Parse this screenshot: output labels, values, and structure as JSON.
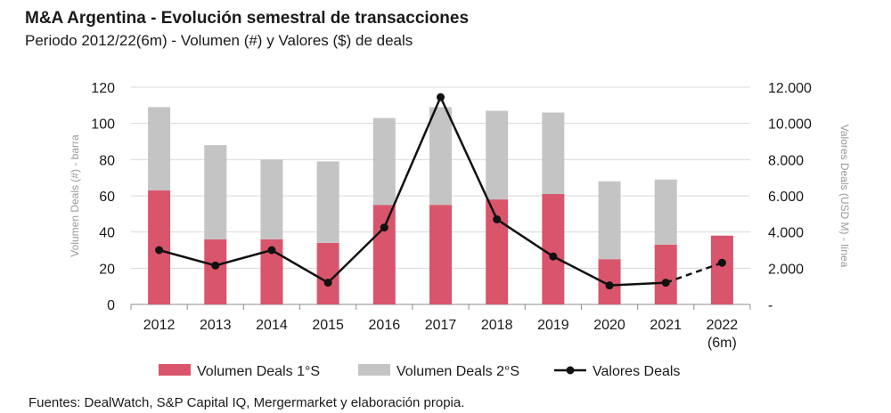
{
  "title": "M&A Argentina - Evolución semestral de transacciones",
  "subtitle": "Periodo 2012/22(6m) - Volumen  (#) y Valores ($) de deals",
  "source": "Fuentes: DealWatch, S&P Capital IQ, Mergermarket y elaboración propia.",
  "chart_data": {
    "type": "bar",
    "stacked": true,
    "categories": [
      "2012",
      "2013",
      "2014",
      "2015",
      "2016",
      "2017",
      "2018",
      "2019",
      "2020",
      "2021",
      "2022\n(6m)"
    ],
    "series": [
      {
        "name": "Volumen Deals 1°S",
        "axis": "left",
        "type": "bar",
        "color": "#d9556b",
        "values": [
          63,
          36,
          36,
          34,
          55,
          55,
          58,
          61,
          25,
          33,
          38
        ]
      },
      {
        "name": "Volumen Deals 2°S",
        "axis": "left",
        "type": "bar",
        "color": "#c4c4c4",
        "values": [
          46,
          52,
          44,
          45,
          48,
          54,
          49,
          45,
          43,
          36,
          null
        ]
      },
      {
        "name": "Valores Deals",
        "axis": "right",
        "type": "line",
        "color": "#111111",
        "values": [
          3000,
          2150,
          3000,
          1200,
          4250,
          11450,
          4700,
          2650,
          1050,
          1200,
          2300
        ],
        "dashed_last_segment": true
      }
    ],
    "ylabel": "Volumen Deals (#) - barra",
    "ylabel_right": "Valores Deals (USD M) - línea",
    "ylim": [
      0,
      120
    ],
    "ylim_right": [
      0,
      12000
    ],
    "yticks": [
      "0",
      "20",
      "40",
      "60",
      "80",
      "100",
      "120"
    ],
    "yticks_right": [
      "-",
      "2.000",
      "4.000",
      "6.000",
      "8.000",
      "10.000",
      "12.000"
    ],
    "grid": true,
    "legend_position": "bottom"
  },
  "colors": {
    "bar_1s": "#d9556b",
    "bar_2s": "#c4c4c4",
    "line": "#111111",
    "grid": "#d9d9d9"
  }
}
